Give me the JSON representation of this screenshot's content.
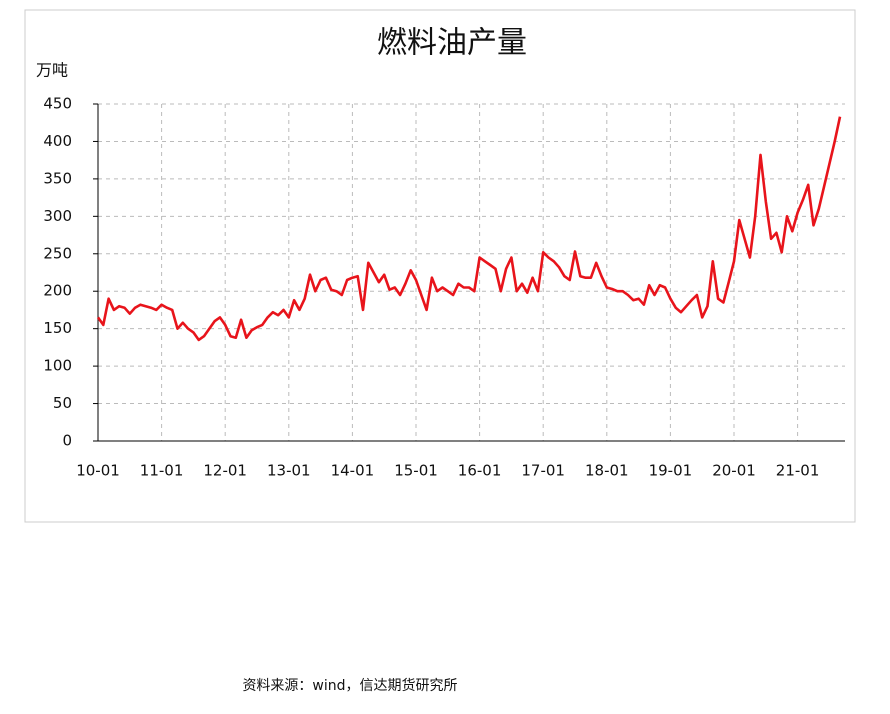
{
  "chart_data": {
    "type": "line",
    "title": "燃料油产量",
    "y_label": "万吨",
    "source": "资料来源：wind，信达期货研究所",
    "categories": [
      "10-01",
      null,
      null,
      null,
      null,
      null,
      null,
      null,
      null,
      null,
      null,
      null,
      "11-01",
      null,
      null,
      null,
      null,
      null,
      null,
      null,
      null,
      null,
      null,
      null,
      "12-01",
      null,
      null,
      null,
      null,
      null,
      null,
      null,
      null,
      null,
      null,
      null,
      "13-01",
      null,
      null,
      null,
      null,
      null,
      null,
      null,
      null,
      null,
      null,
      null,
      "14-01",
      null,
      null,
      null,
      null,
      null,
      null,
      null,
      null,
      null,
      null,
      null,
      "15-01",
      null,
      null,
      null,
      null,
      null,
      null,
      null,
      null,
      null,
      null,
      null,
      "16-01",
      null,
      null,
      null,
      null,
      null,
      null,
      null,
      null,
      null,
      null,
      null,
      "17-01",
      null,
      null,
      null,
      null,
      null,
      null,
      null,
      null,
      null,
      null,
      null,
      "18-01",
      null,
      null,
      null,
      null,
      null,
      null,
      null,
      null,
      null,
      null,
      null,
      "19-01",
      null,
      null,
      null,
      null,
      null,
      null,
      null,
      null,
      null,
      null,
      null,
      "20-01",
      null,
      null,
      null,
      null,
      null,
      null,
      null,
      null,
      null,
      null,
      null,
      "21-01",
      null,
      null,
      null,
      null,
      null,
      null,
      null,
      null
    ],
    "series": [
      {
        "color": "#e8141b",
        "values": [
          165,
          155,
          190,
          175,
          180,
          178,
          170,
          178,
          182,
          180,
          178,
          175,
          182,
          178,
          175,
          150,
          158,
          150,
          145,
          135,
          140,
          150,
          160,
          165,
          155,
          140,
          138,
          162,
          138,
          148,
          152,
          155,
          165,
          172,
          168,
          175,
          165,
          188,
          175,
          190,
          222,
          200,
          215,
          218,
          202,
          200,
          195,
          215,
          218,
          220,
          175,
          238,
          225,
          212,
          222,
          202,
          205,
          195,
          210,
          228,
          215,
          195,
          175,
          218,
          200,
          205,
          200,
          195,
          210,
          205,
          205,
          200,
          245,
          240,
          235,
          230,
          200,
          230,
          245,
          200,
          210,
          198,
          218,
          200,
          252,
          245,
          240,
          232,
          220,
          215,
          253,
          220,
          218,
          218,
          238,
          220,
          205,
          203,
          200,
          200,
          195,
          188,
          190,
          182,
          208,
          195,
          208,
          205,
          190,
          178,
          172,
          180,
          188,
          195,
          165,
          180,
          240,
          190,
          185,
          212,
          240,
          295,
          270,
          245,
          300,
          382,
          320,
          270,
          278,
          252,
          300,
          280,
          305,
          322,
          342,
          288,
          310,
          340,
          370,
          400,
          433
        ]
      }
    ],
    "ylim": [
      0,
      450
    ],
    "yticks": [
      0,
      50,
      100,
      150,
      200,
      250,
      300,
      350,
      400,
      450
    ],
    "grid": true
  }
}
